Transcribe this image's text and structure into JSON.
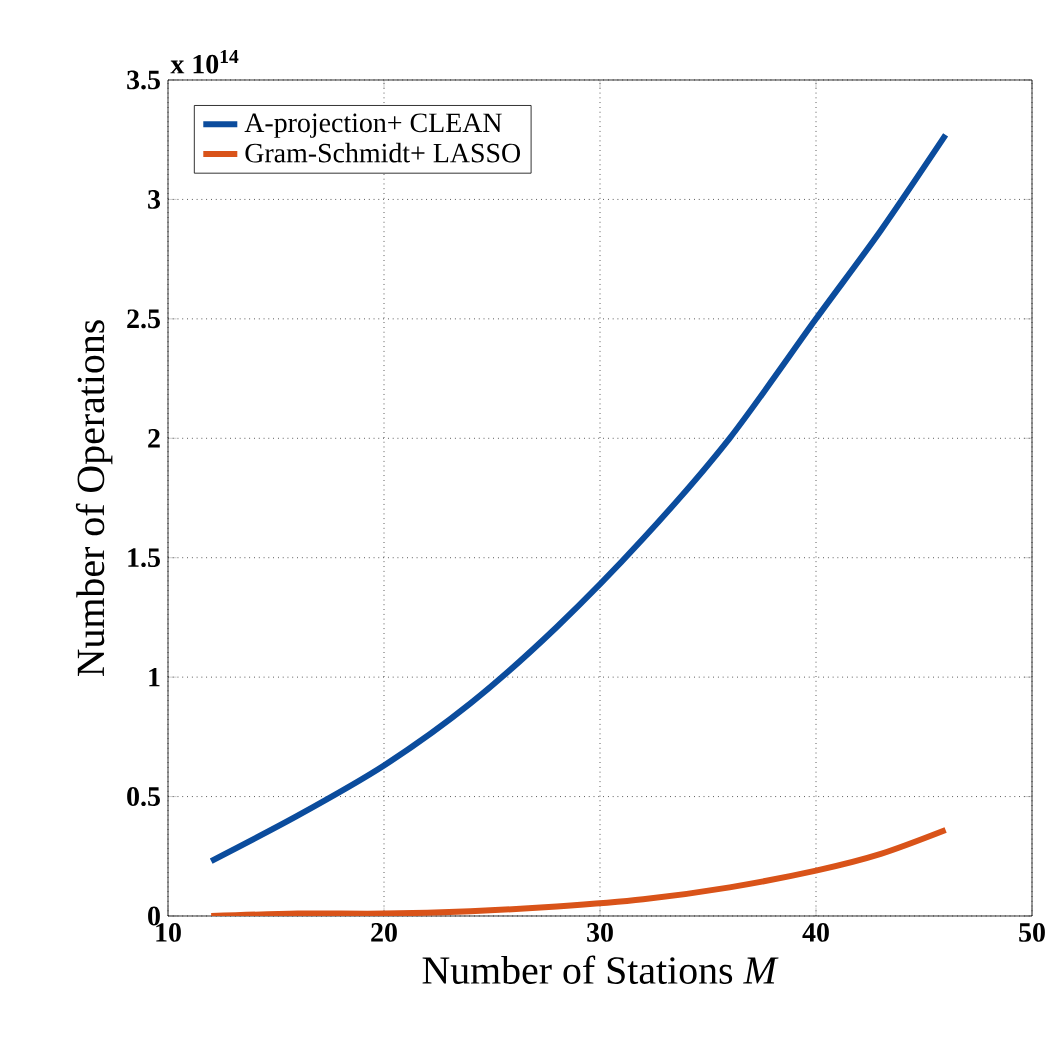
{
  "chart_data": {
    "type": "line",
    "xlabel": "Number of Stations *M*",
    "ylabel": "Number of Operations",
    "annotations": [
      "x 10$^{14}$"
    ],
    "series": [
      {
        "name": "A-projection+ CLEAN",
        "color": "#0b4c9d",
        "x": [
          12,
          16,
          20,
          24,
          28,
          32,
          36,
          40,
          43,
          46
        ],
        "values": [
          0.23,
          0.42,
          0.63,
          0.89,
          1.21,
          1.58,
          2.0,
          2.5,
          2.87,
          3.27
        ]
      },
      {
        "name": "Gram-Schmidt+ LASSO",
        "color": "#d95319",
        "x": [
          12,
          16,
          20,
          24,
          28,
          32,
          36,
          40,
          43,
          46
        ],
        "values": [
          0.0,
          0.01,
          0.01,
          0.02,
          0.04,
          0.07,
          0.12,
          0.19,
          0.26,
          0.36
        ]
      }
    ],
    "xlim": [
      10,
      50
    ],
    "xticks": [
      10,
      20,
      30,
      40,
      50
    ],
    "ylim": [
      0,
      3.5
    ],
    "yticks": [
      0,
      0.5,
      1,
      1.5,
      2,
      2.5,
      3,
      3.5
    ],
    "grid": true,
    "legend": "top left",
    "marker": "none",
    "line_style": "solid"
  }
}
